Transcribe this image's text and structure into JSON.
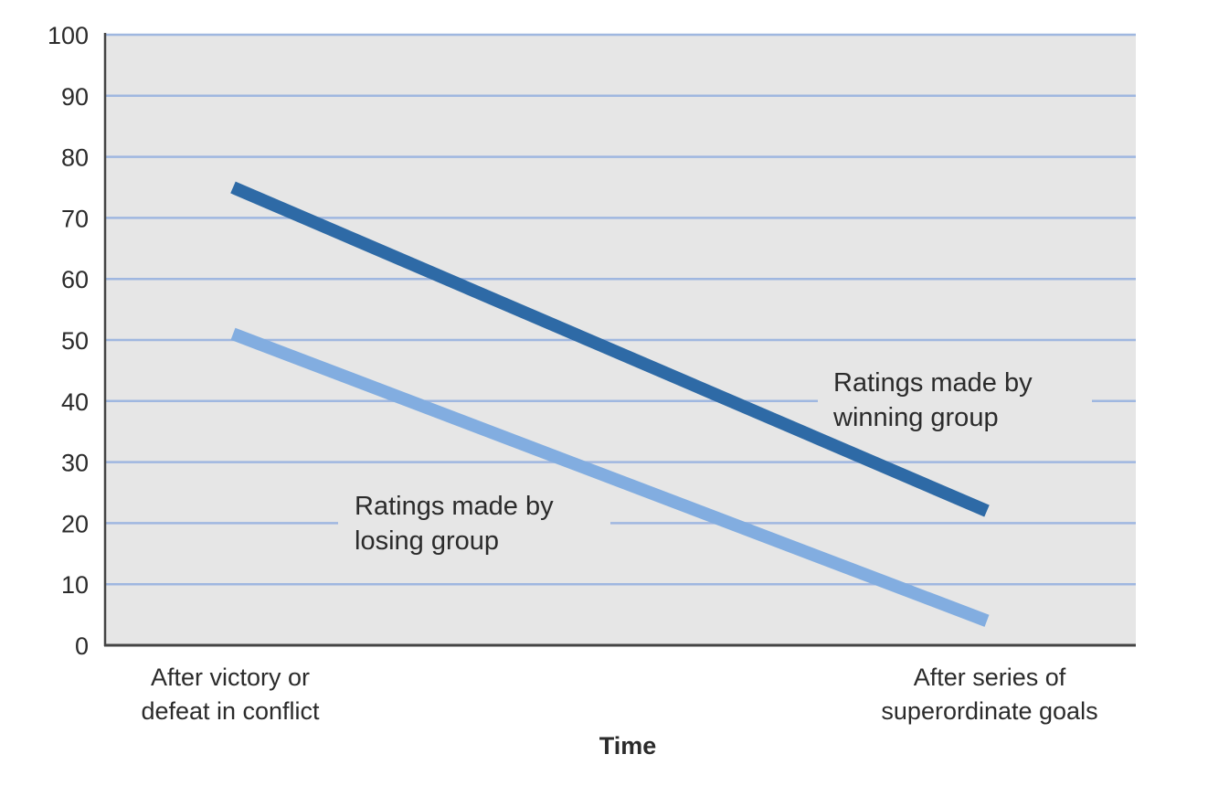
{
  "chart_data": {
    "type": "line",
    "title": "",
    "xlabel": "Time",
    "ylabel": "",
    "ylim": [
      0,
      100
    ],
    "yticks": [
      0,
      10,
      20,
      30,
      40,
      50,
      60,
      70,
      80,
      90,
      100
    ],
    "grid": true,
    "categories": [
      [
        "After victory or",
        "defeat in conflict"
      ],
      [
        "After series of",
        "superordinate goals"
      ]
    ],
    "series": [
      {
        "name": "Ratings made by winning group",
        "values": [
          75,
          22
        ],
        "color": "#2e6aa6",
        "label_lines": [
          "Ratings made by",
          "winning group"
        ]
      },
      {
        "name": "Ratings made by losing group",
        "values": [
          51,
          4
        ],
        "color": "#82ade0",
        "label_lines": [
          "Ratings made by",
          "losing group"
        ]
      }
    ],
    "colors": {
      "plot_bg": "#e6e6e6",
      "grid": "#9fb7e0",
      "axis": "#444444"
    }
  }
}
